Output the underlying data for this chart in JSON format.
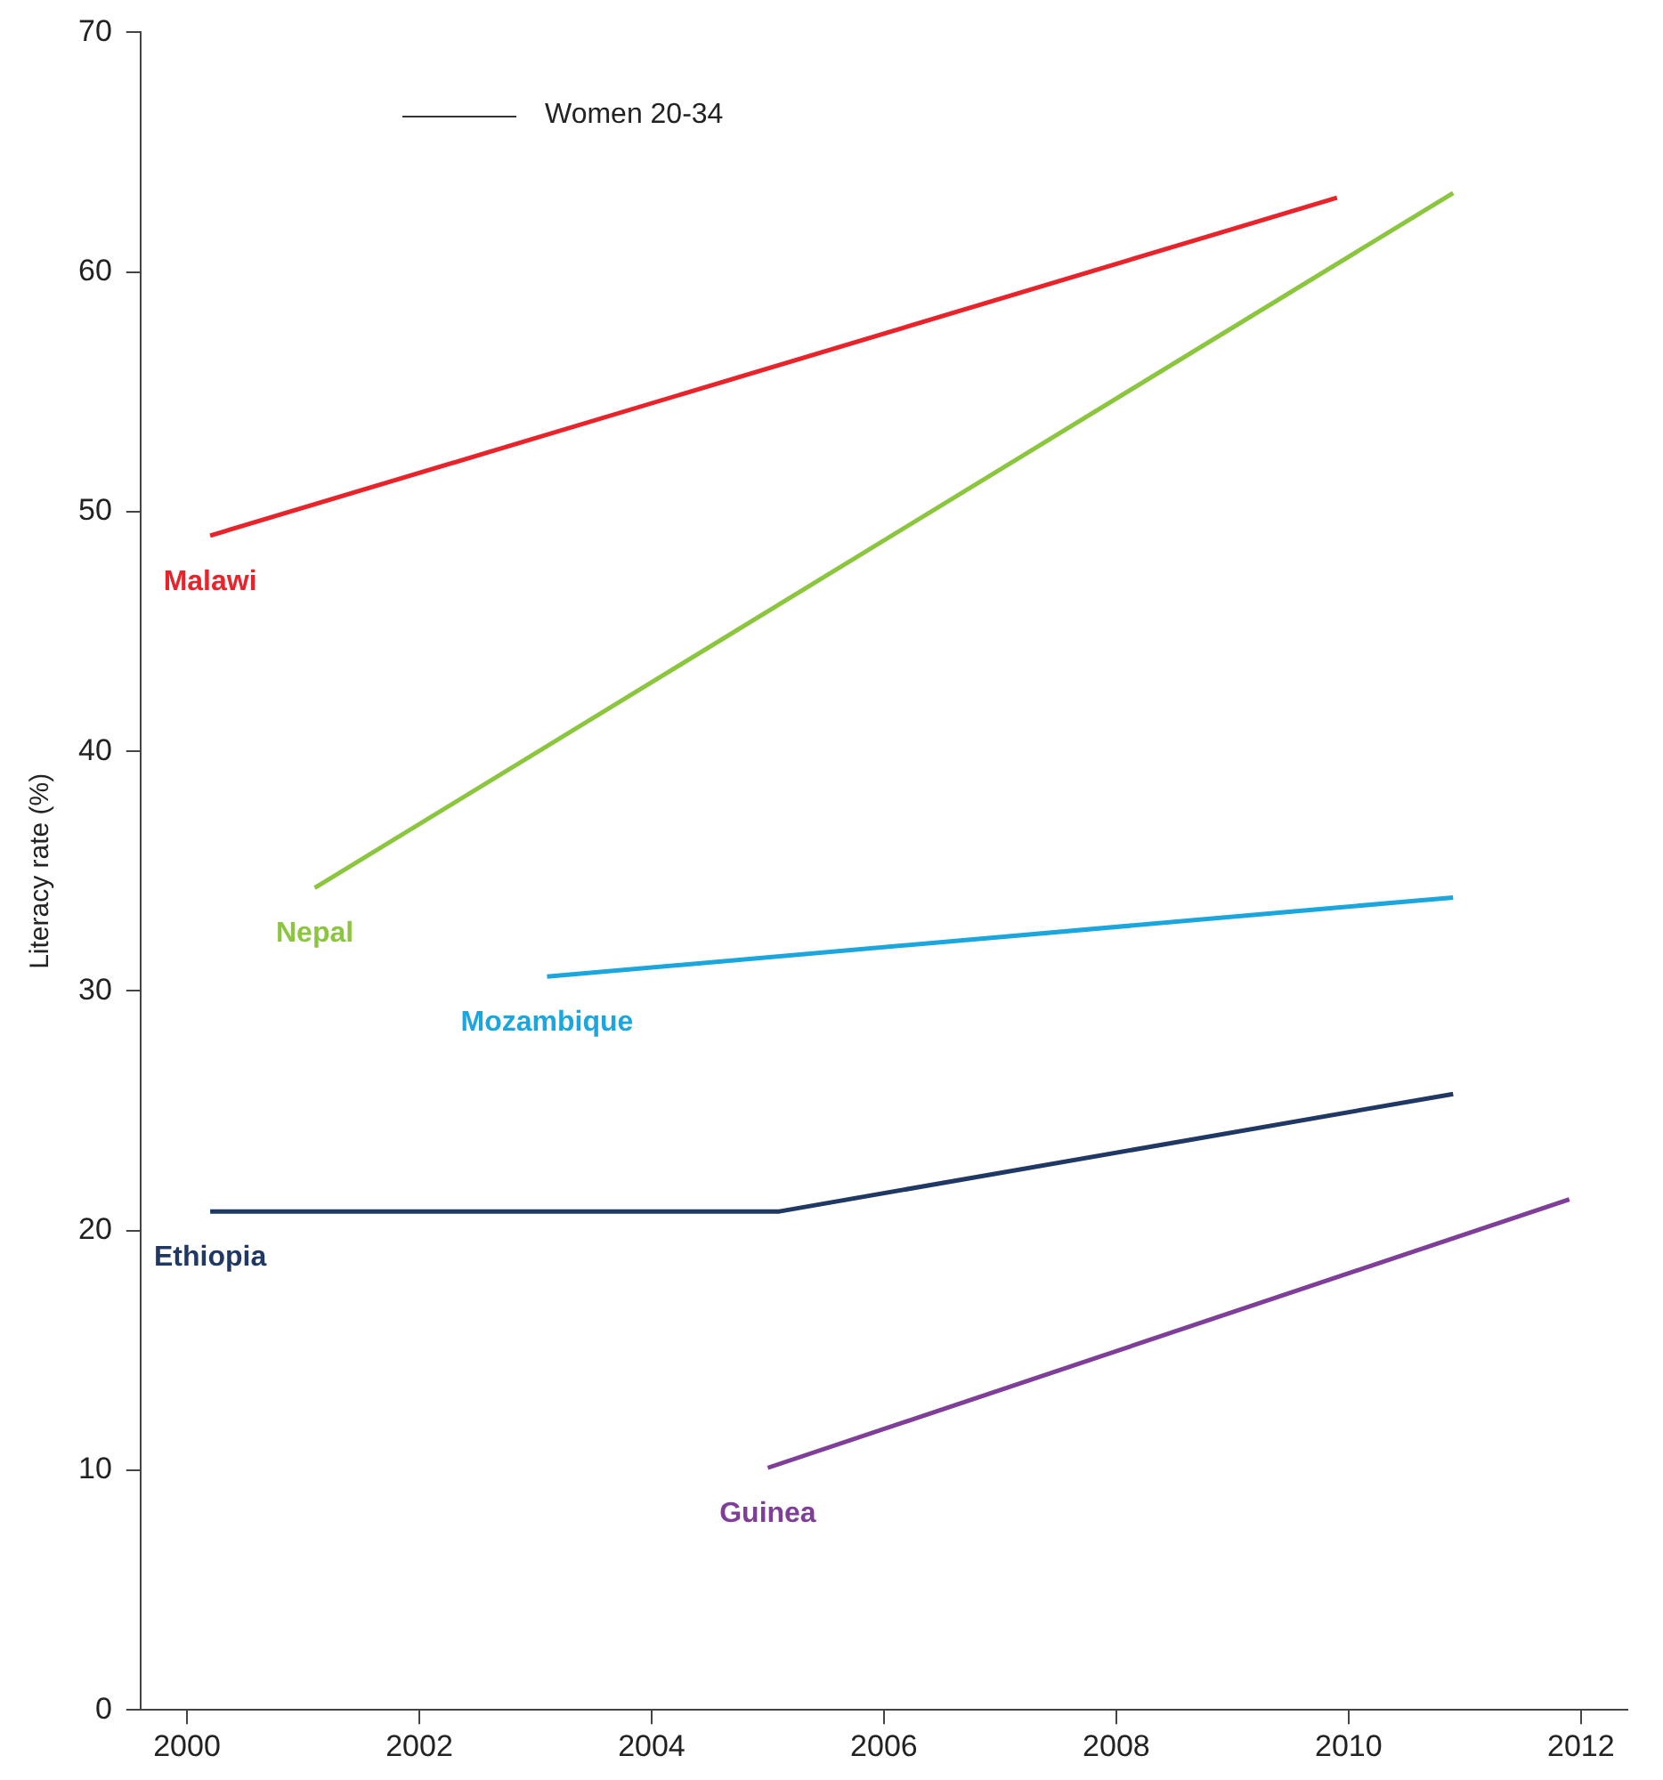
{
  "chart_data": {
    "type": "line",
    "ylabel": "Literacy rate (%)",
    "annotations": [
      "Women 20-34"
    ],
    "grid": false,
    "xlim": [
      1999.6,
      2012.4
    ],
    "xticks": [
      2000,
      2002,
      2004,
      2006,
      2008,
      2010,
      2012
    ],
    "ylim": [
      0,
      70
    ],
    "yticks": [
      0,
      10,
      20,
      30,
      40,
      50,
      60,
      70
    ],
    "series": [
      {
        "name": "Malawi",
        "color": "#e8232a",
        "x": [
          2000.2,
          2009.9
        ],
        "values": [
          49.0,
          63.1
        ]
      },
      {
        "name": "Nepal",
        "color": "#8cc63f",
        "x": [
          2001.1,
          2010.9
        ],
        "values": [
          34.3,
          63.3
        ]
      },
      {
        "name": "Mozambique",
        "color": "#1ba6dd",
        "x": [
          2003.1,
          2010.9
        ],
        "values": [
          30.6,
          33.9
        ]
      },
      {
        "name": "Ethiopia",
        "color": "#1f3864",
        "x": [
          2000.2,
          2005.1,
          2010.9
        ],
        "values": [
          20.8,
          20.8,
          25.7
        ]
      },
      {
        "name": "Guinea",
        "color": "#7f3f98",
        "x": [
          2005.0,
          2011.9
        ],
        "values": [
          10.1,
          21.3
        ]
      }
    ]
  }
}
